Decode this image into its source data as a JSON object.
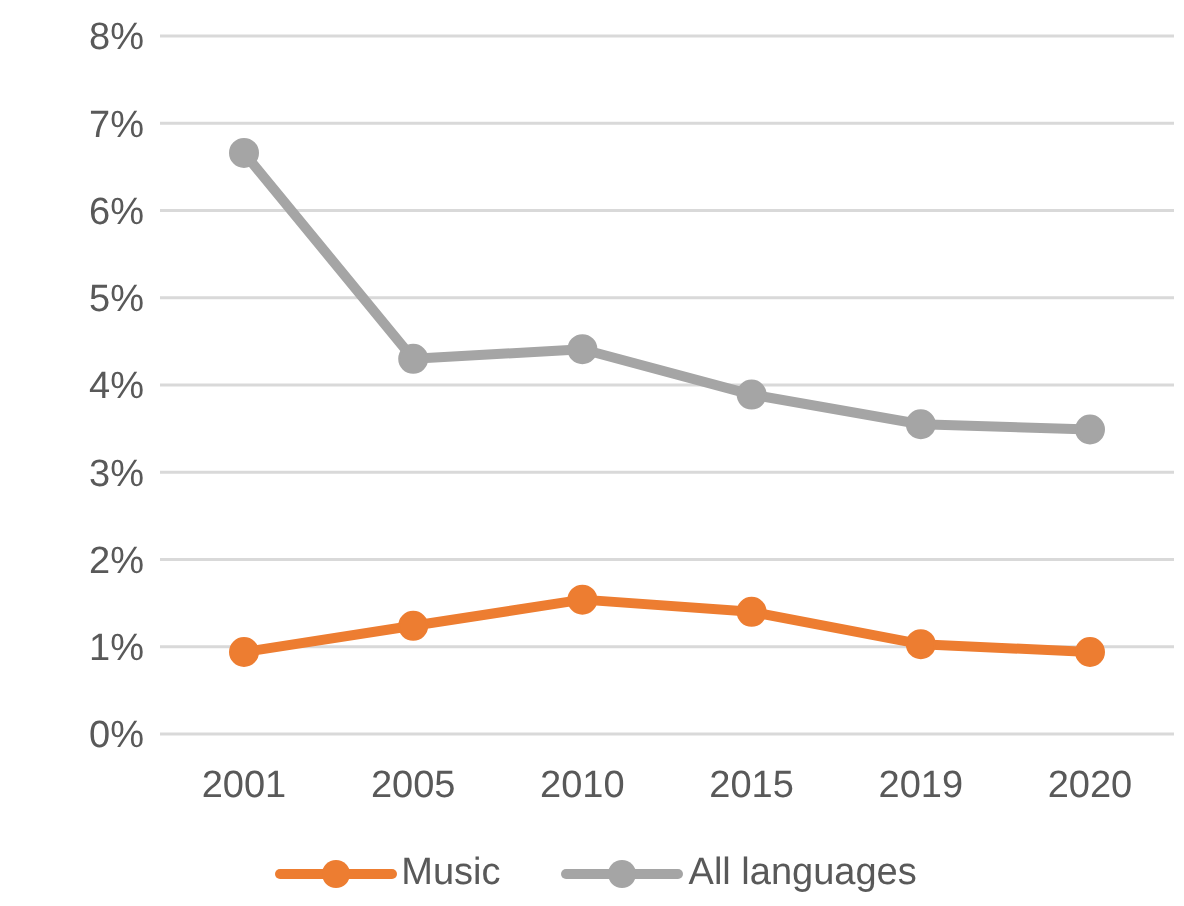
{
  "chart_data": {
    "type": "line",
    "categories": [
      "2001",
      "2005",
      "2010",
      "2015",
      "2019",
      "2020"
    ],
    "series": [
      {
        "name": "Music",
        "color": "#ed7d31",
        "values": [
          0.94,
          1.24,
          1.54,
          1.4,
          1.03,
          0.94
        ]
      },
      {
        "name": "All languages",
        "color": "#a5a5a5",
        "values": [
          6.66,
          4.3,
          4.41,
          3.89,
          3.55,
          3.49
        ]
      }
    ],
    "ylim": [
      0,
      8
    ],
    "yticks": [
      {
        "value": 0,
        "label": "0%"
      },
      {
        "value": 1,
        "label": "1%"
      },
      {
        "value": 2,
        "label": "2%"
      },
      {
        "value": 3,
        "label": "3%"
      },
      {
        "value": 4,
        "label": "4%"
      },
      {
        "value": 5,
        "label": "5%"
      },
      {
        "value": 6,
        "label": "6%"
      },
      {
        "value": 7,
        "label": "7%"
      },
      {
        "value": 8,
        "label": "8%"
      }
    ],
    "grid": "y",
    "legend": "bottom",
    "marker": "circle",
    "line_style": "solid"
  }
}
